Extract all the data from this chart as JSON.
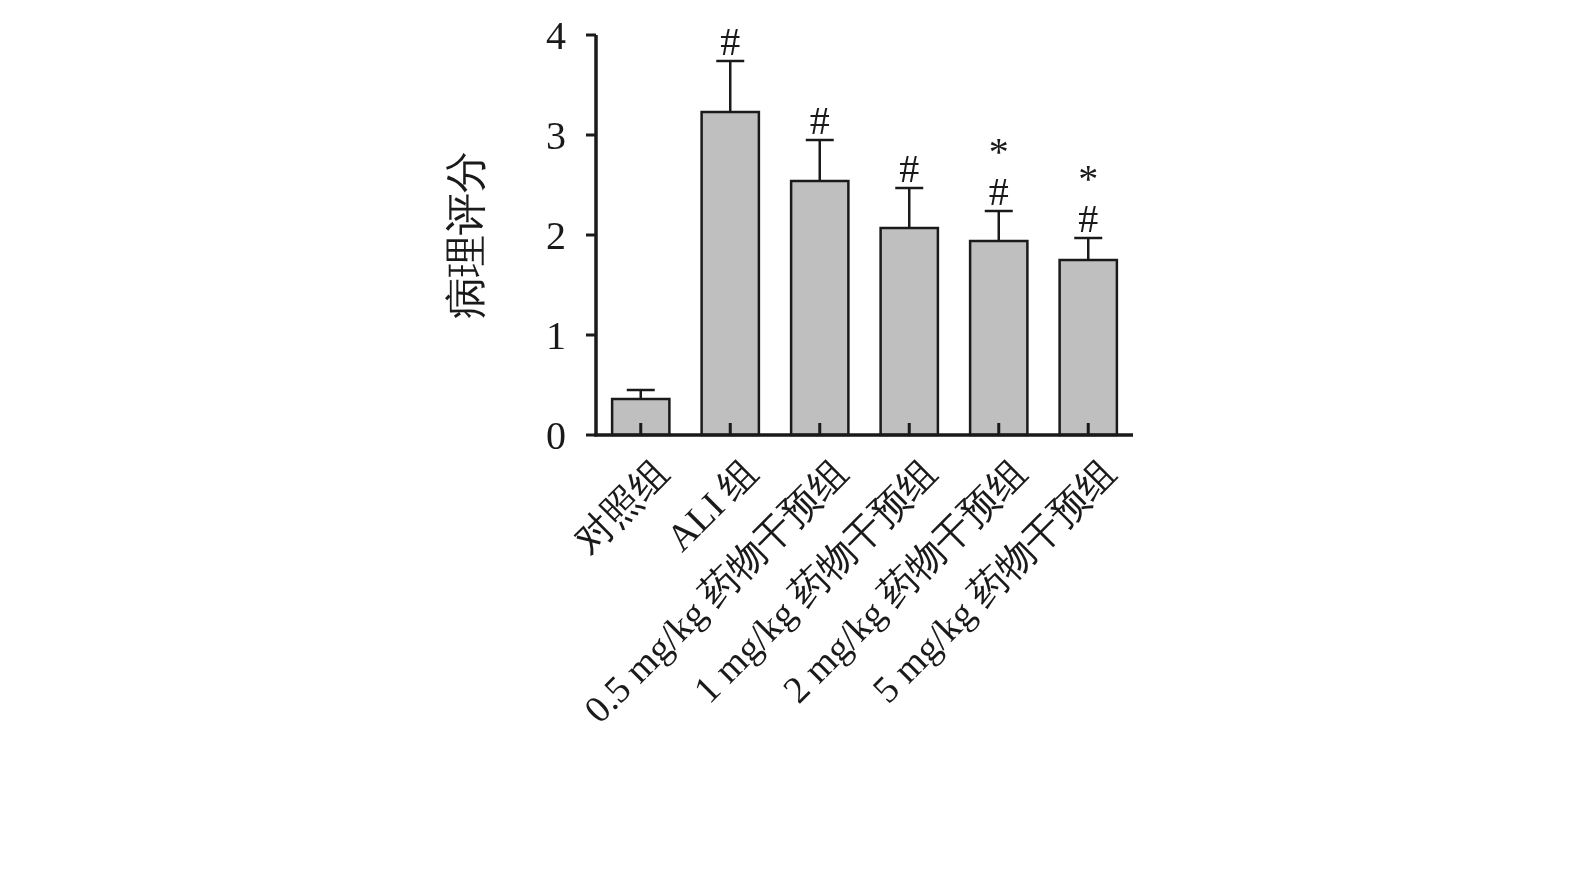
{
  "chart_data": {
    "type": "bar",
    "ylabel": "病理评分",
    "categories": [
      "对照组",
      "ALI 组",
      "0.5 mg/kg 药物干预组",
      "1 mg/kg 药物干预组",
      "2 mg/kg 药物干预组",
      "5 mg/kg 药物干预组"
    ],
    "values": [
      0.36,
      3.23,
      2.54,
      2.07,
      1.94,
      1.75
    ],
    "errors": [
      [
        0.36,
        0.45
      ],
      [
        3.23,
        3.74
      ],
      [
        2.54,
        2.95
      ],
      [
        2.07,
        2.47
      ],
      [
        1.94,
        2.24
      ],
      [
        1.75,
        1.97
      ]
    ],
    "color": "#bfbfbf",
    "ylim": [
      0,
      4
    ],
    "yticks": [
      0,
      1,
      2,
      3,
      4
    ],
    "grid": false,
    "annotations": [
      {
        "text": "#",
        "x": "ALI 组",
        "y": 3.74
      },
      {
        "text": "#",
        "x": "0.5 mg/kg 药物干预组",
        "y": 2.95
      },
      {
        "text": "#",
        "x": "1 mg/kg 药物干预组",
        "y": 2.47
      },
      {
        "text": "#\n*",
        "x": "2 mg/kg 药物干预组",
        "y": 2.24
      },
      {
        "text": "#\n*",
        "x": "5 mg/kg 药物干预组",
        "y": 1.97
      }
    ]
  }
}
